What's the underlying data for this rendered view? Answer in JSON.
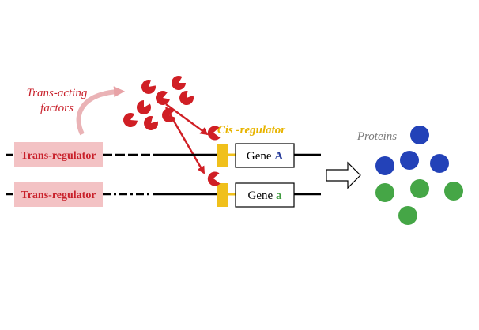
{
  "labels": {
    "trans_acting_line1": "Trans-acting",
    "trans_acting_line2": "factors",
    "cis_regulator": "Cis -regulator",
    "proteins": "Proteins"
  },
  "loci": [
    {
      "regulator_label": "Trans-regulator",
      "gene_prefix": "Gene ",
      "allele": "A",
      "allele_color": "#2a3f9c"
    },
    {
      "regulator_label": "Trans-regulator",
      "gene_prefix": "Gene ",
      "allele": "a",
      "allele_color": "#3f9b3f"
    }
  ],
  "colors": {
    "factor": "#d01f25",
    "label_red": "#c8202a",
    "regulator_box": "#f3c2c4",
    "cis_box": "#f0c01b",
    "cis_text": "#e8b400",
    "proteins_text": "#7a7a7a",
    "protein_blue": "#2342b8",
    "protein_green": "#45a646",
    "curved_arrow": "#e8a2a6"
  }
}
